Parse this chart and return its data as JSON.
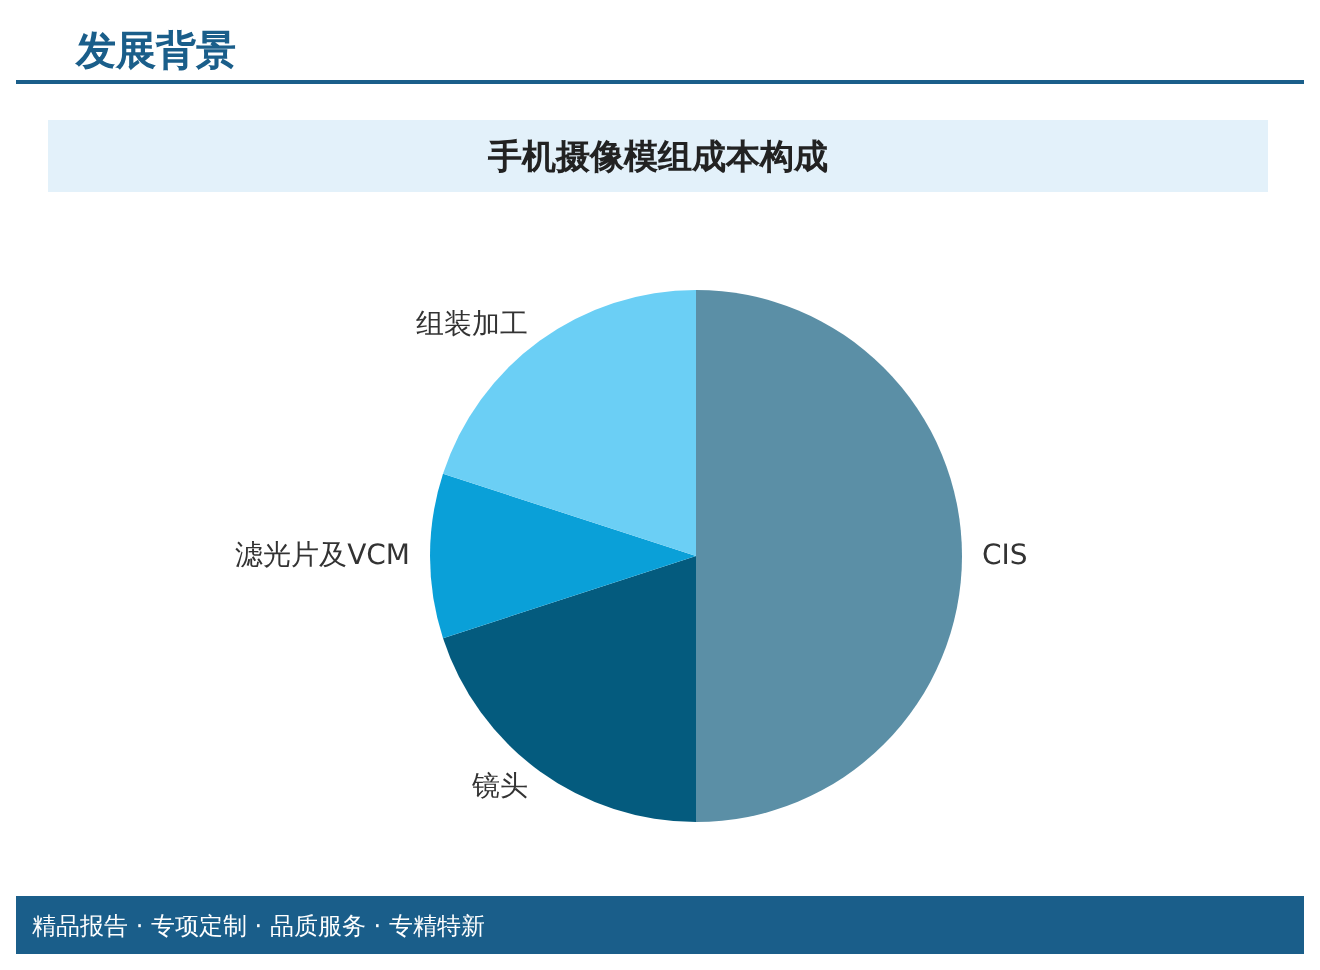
{
  "chart_data": {
    "type": "pie",
    "title": "手机摄像模组成本构成",
    "categories": [
      "CIS",
      "镜头",
      "滤光片及VCM",
      "组装加工"
    ],
    "values": [
      50,
      20,
      10,
      20
    ],
    "colors": [
      "#5b8fa6",
      "#045b7e",
      "#0aa0d8",
      "#6bcff5"
    ],
    "annotations": [
      "发展背景",
      "精品报告 · 专项定制 · 品质服务 · 专精特新"
    ]
  }
}
